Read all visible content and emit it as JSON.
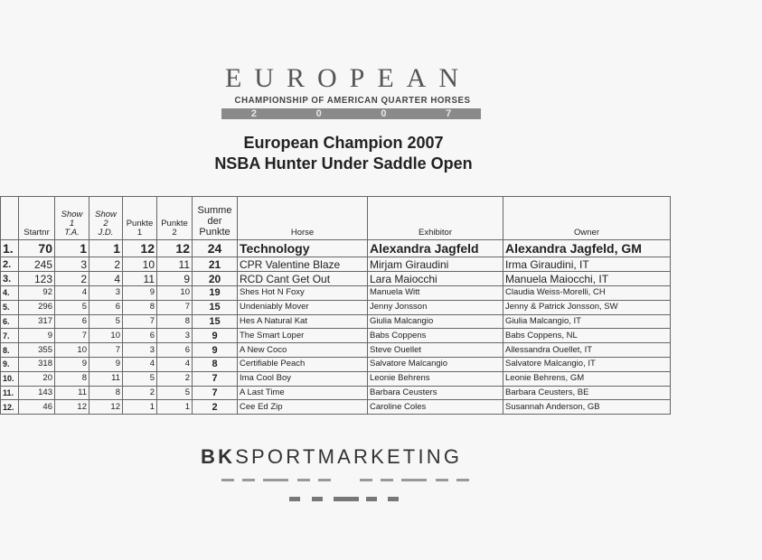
{
  "logo": {
    "word": "EUROPEAN",
    "subtitle": "CHAMPIONSHIP OF AMERICAN QUARTER HORSES",
    "year_digits": [
      "2",
      "0",
      "0",
      "7"
    ]
  },
  "title": {
    "line1": "European Champion 2007",
    "line2": "NSBA Hunter Under Saddle Open"
  },
  "table": {
    "header": [
      [
        "Startnr"
      ],
      [
        "Show",
        "1",
        "T.A."
      ],
      [
        "Show",
        "2",
        "J.D."
      ],
      [
        "Punkte",
        "1"
      ],
      [
        "Punkte",
        "2"
      ],
      [
        "Summe",
        "der",
        "Punkte"
      ],
      [
        "Horse"
      ],
      [
        "Exhibitor"
      ],
      [
        "Owner"
      ]
    ],
    "rows": [
      [
        "1.",
        70,
        1,
        1,
        12,
        12,
        24,
        "Technology",
        "Alexandra Jagfeld",
        "Alexandra Jagfeld, GM"
      ],
      [
        "2.",
        245,
        3,
        2,
        10,
        11,
        21,
        "CPR Valentine Blaze",
        "Mirjam Giraudini",
        "Irma Giraudini, IT"
      ],
      [
        "3.",
        123,
        2,
        4,
        11,
        9,
        20,
        "RCD Cant Get Out",
        "Lara Maiocchi",
        "Manuela Maiocchi, IT"
      ],
      [
        "4.",
        92,
        4,
        3,
        9,
        10,
        19,
        "Shes Hot N Foxy",
        "Manuela Witt",
        "Claudia Weiss-Morelli, CH"
      ],
      [
        "5.",
        296,
        5,
        6,
        8,
        7,
        15,
        "Undeniably Mover",
        "Jenny Jonsson",
        "Jenny & Patrick Jonsson, SW"
      ],
      [
        "6.",
        317,
        6,
        5,
        7,
        8,
        15,
        "Hes A Natural Kat",
        "Giulia Malcangio",
        "Giulia Malcangio, IT"
      ],
      [
        "7.",
        9,
        7,
        10,
        6,
        3,
        9,
        "The Smart Loper",
        "Babs Coppens",
        "Babs Coppens, NL"
      ],
      [
        "8.",
        355,
        10,
        7,
        3,
        6,
        9,
        "A New Coco",
        "Steve Ouellet",
        "Allessandra Ouellet, IT"
      ],
      [
        "9.",
        318,
        9,
        9,
        4,
        4,
        8,
        "Certifiable Peach",
        "Salvatore Malcangio",
        "Salvatore Malcangio, IT"
      ],
      [
        "10.",
        20,
        8,
        11,
        5,
        2,
        7,
        "Ima Cool Boy",
        "Leonie Behrens",
        "Leonie Behrens, GM"
      ],
      [
        "11.",
        143,
        11,
        8,
        2,
        5,
        7,
        "A Last Time",
        "Barbara Ceusters",
        "Barbara Ceusters, BE"
      ],
      [
        "12.",
        46,
        12,
        12,
        1,
        1,
        2,
        "Cee Ed Zip",
        "Caroline Coles",
        "Susannah Anderson, GB"
      ]
    ]
  },
  "footer": {
    "brand_bold": "BK",
    "brand_rest": "SPORTMARKETING"
  }
}
